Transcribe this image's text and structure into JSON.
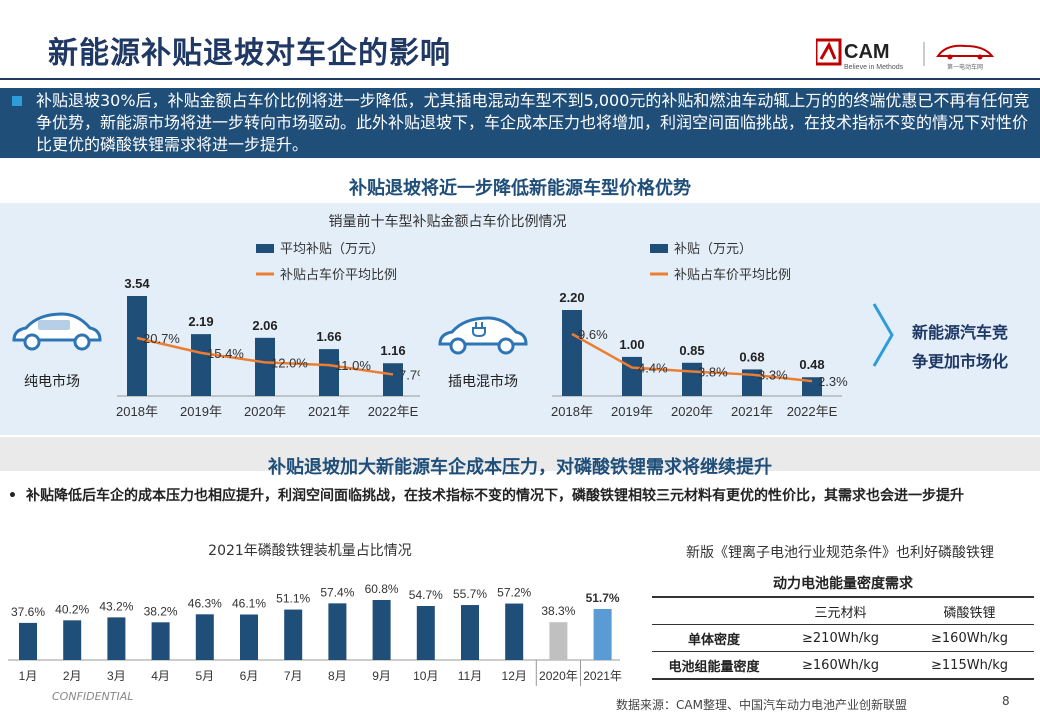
{
  "header": {
    "title": "新能源补贴退坡对车企的影响",
    "logo_text": "CAM",
    "logo_tagline": "Believe in Methods",
    "logo_brand": "第一电动车网"
  },
  "intro": {
    "text": "补贴退坡30%后，补贴金额占车价比例将进一步降低，尤其插电混动车型不到5,000元的补贴和燃油车动辄上万的的终端优惠已不再有任何竞争优势，新能源市场将进一步转向市场驱动。此外补贴退坡下，车企成本压力也将增加，利润空间面临挑战，在技术指标不变的情况下对性价比更优的磷酸铁锂需求将进一步提升。"
  },
  "section1": {
    "title": "补贴退坡将近一步降低新能源车型价格优势",
    "chart_caption": "销量前十车型补贴金额占车价比例情况"
  },
  "section2": {
    "title": "补贴退坡加大新能源车企成本压力，对磷酸铁锂需求将继续提升",
    "bullet": "补贴降低后车企的成本压力也相应提升，利润空间面临挑战，在技术指标不变的情况下，磷酸铁锂相较三元材料有更优的性价比，其需求也会进一步提升"
  },
  "market_note": {
    "line1": "新能源汽车竞",
    "line2": "争更加市场化"
  },
  "icons": {
    "bev_car": "electric-car-icon",
    "phev_car": "plug-in-car-icon",
    "arrow": "chevron-right-icon"
  },
  "colors": {
    "navy": "#1f4e79",
    "bar": "#1f4e79",
    "line": "#ed7d31",
    "bar_2020": "#c0c0c0",
    "bar_2021": "#5b9bd5"
  },
  "chart_data": [
    {
      "type": "bar",
      "label": "纯电市场",
      "categories": [
        "2018年",
        "2019年",
        "2020年",
        "2021年",
        "2022年E"
      ],
      "series": [
        {
          "name": "平均补贴（万元）",
          "type": "bar",
          "values": [
            3.54,
            2.19,
            2.06,
            1.66,
            1.16
          ],
          "labels": [
            "3.54",
            "2.19",
            "2.06",
            "1.66",
            "1.16"
          ]
        },
        {
          "name": "补贴占车价平均比例",
          "type": "line",
          "values": [
            20.7,
            15.4,
            12.0,
            11.0,
            7.7
          ],
          "labels": [
            "20.7%",
            "15.4%",
            "12.0%",
            "11.0%",
            "7.7%"
          ]
        }
      ]
    },
    {
      "type": "bar",
      "label": "插电混市场",
      "categories": [
        "2018年",
        "2019年",
        "2020年",
        "2021年",
        "2022年E"
      ],
      "series": [
        {
          "name": "补贴（万元）",
          "type": "bar",
          "values": [
            2.2,
            1.0,
            0.85,
            0.68,
            0.48
          ],
          "labels": [
            "2.20",
            "1.00",
            "0.85",
            "0.68",
            "0.48"
          ]
        },
        {
          "name": "补贴占车价平均比例",
          "type": "line",
          "values": [
            9.6,
            4.4,
            3.8,
            3.3,
            2.3
          ],
          "labels": [
            "9.6%",
            "4.4%",
            "3.8%",
            "3.3%",
            "2.3%"
          ]
        }
      ]
    },
    {
      "type": "bar",
      "title": "2021年磷酸铁锂装机量占比情况",
      "categories": [
        "1月",
        "2月",
        "3月",
        "4月",
        "5月",
        "6月",
        "7月",
        "8月",
        "9月",
        "10月",
        "11月",
        "12月",
        "2020年",
        "2021年"
      ],
      "values": [
        37.6,
        40.2,
        43.2,
        38.2,
        46.3,
        46.1,
        51.1,
        57.4,
        60.8,
        54.7,
        55.7,
        57.2,
        38.3,
        51.7
      ],
      "labels": [
        "37.6%",
        "40.2%",
        "43.2%",
        "38.2%",
        "46.3%",
        "46.1%",
        "51.1%",
        "57.4%",
        "60.8%",
        "54.7%",
        "55.7%",
        "57.2%",
        "38.3%",
        "51.7%"
      ]
    }
  ],
  "spec_table": {
    "caption": "新版《锂离子电池行业规范条件》也利好磷酸铁锂",
    "title": "动力电池能量密度需求",
    "columns": [
      "三元材料",
      "磷酸铁锂"
    ],
    "rows": [
      {
        "label": "单体密度",
        "values": [
          "≥210Wh/kg",
          "≥160Wh/kg"
        ]
      },
      {
        "label": "电池组能量密度",
        "values": [
          "≥160Wh/kg",
          "≥115Wh/kg"
        ]
      }
    ]
  },
  "footer": {
    "confidential": "CONFIDENTIAL",
    "source": "数据来源：CAM整理、中国汽车动力电池产业创新联盟",
    "page": "8"
  }
}
